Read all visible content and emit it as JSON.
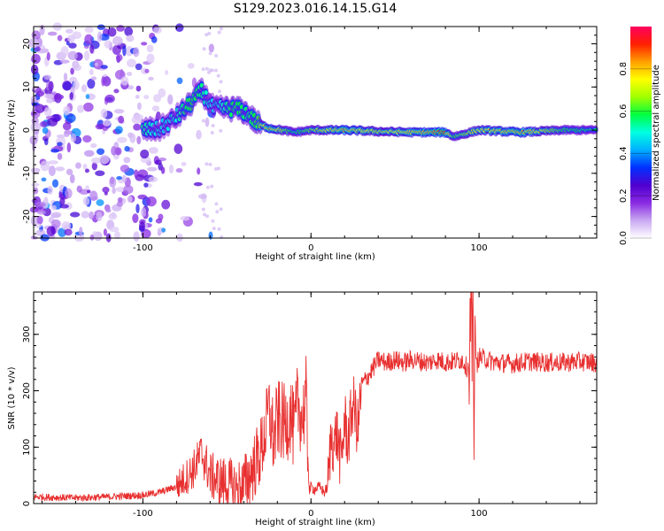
{
  "title": "S129.2023.016.14.15.G14",
  "chart_data": [
    {
      "type": "heatmap",
      "xlabel": "Height of straight line (km)",
      "ylabel": "Frequency (Hz)",
      "xlim": [
        -165,
        170
      ],
      "ylim": [
        -25,
        24
      ],
      "x_ticks": [
        -100,
        0,
        100
      ],
      "y_ticks": [
        -20,
        -10,
        0,
        10,
        20
      ],
      "grid": false,
      "colorbar": {
        "label": "Normalized spectral amplitude",
        "range": [
          0,
          1
        ],
        "ticks": [
          "0.0",
          "0.2",
          "0.4",
          "0.6",
          "0.8"
        ],
        "colormap": [
          "#ffffff",
          "#c9a8f2",
          "#8a2be2",
          "#5000d0",
          "#0030ff",
          "#00b0ff",
          "#00ffe0",
          "#00ff40",
          "#a0ff00",
          "#ffff00",
          "#ffa000",
          "#ff2000",
          "#ff0060"
        ]
      },
      "ridge": [
        {
          "x": -100,
          "y": 0.0,
          "amp": 0.55
        },
        {
          "x": -90,
          "y": 0.2,
          "amp": 0.45
        },
        {
          "x": -80,
          "y": 3.0,
          "amp": 0.5
        },
        {
          "x": -72,
          "y": 6.0,
          "amp": 0.6
        },
        {
          "x": -65,
          "y": 9.0,
          "amp": 0.55
        },
        {
          "x": -58,
          "y": 5.0,
          "amp": 0.45
        },
        {
          "x": -45,
          "y": 5.0,
          "amp": 0.6
        },
        {
          "x": -38,
          "y": 4.0,
          "amp": 0.55
        },
        {
          "x": -32,
          "y": 1.5,
          "amp": 0.6
        },
        {
          "x": -25,
          "y": 0.5,
          "amp": 0.85
        },
        {
          "x": -10,
          "y": -0.5,
          "amp": 0.55
        },
        {
          "x": 0,
          "y": 0.0,
          "amp": 0.65
        },
        {
          "x": 20,
          "y": 0.0,
          "amp": 0.85
        },
        {
          "x": 40,
          "y": -0.3,
          "amp": 0.7
        },
        {
          "x": 60,
          "y": -0.5,
          "amp": 0.8
        },
        {
          "x": 80,
          "y": -0.5,
          "amp": 0.9
        },
        {
          "x": 85,
          "y": -1.5,
          "amp": 0.6
        },
        {
          "x": 100,
          "y": 0.0,
          "amp": 0.75
        },
        {
          "x": 125,
          "y": -0.5,
          "amp": 0.85
        },
        {
          "x": 150,
          "y": 0.0,
          "amp": 0.6
        },
        {
          "x": 170,
          "y": 0.0,
          "amp": 0.55
        }
      ]
    },
    {
      "type": "line",
      "xlabel": "Height of straight line (km)",
      "ylabel": "SNR (10 * v/v)",
      "xlim": [
        -165,
        170
      ],
      "ylim": [
        0,
        375
      ],
      "x_ticks": [
        -100,
        0,
        100
      ],
      "y_ticks": [
        0,
        100,
        200,
        300
      ],
      "grid": false,
      "line_color": "#e83030",
      "series": [
        {
          "x": [
            -165,
            -140,
            -120,
            -100,
            -90,
            -80,
            -75,
            -70,
            -65,
            -60,
            -55,
            -50,
            -45,
            -40,
            -35,
            -30,
            -27,
            -25,
            -22,
            -20,
            -15,
            -12,
            -10,
            -8,
            -5,
            -3,
            -2,
            -1,
            0,
            2,
            5,
            8,
            10,
            12,
            14,
            15,
            18,
            20,
            22,
            25,
            28,
            30,
            35,
            40,
            45,
            50,
            55,
            60,
            65,
            70,
            75,
            80,
            85,
            90,
            93,
            95,
            96,
            97,
            98,
            100,
            105,
            110,
            120,
            130,
            140,
            150,
            160,
            170
          ],
          "y": [
            12,
            10,
            12,
            15,
            20,
            30,
            45,
            60,
            90,
            50,
            40,
            35,
            25,
            30,
            60,
            90,
            130,
            165,
            110,
            150,
            140,
            160,
            120,
            180,
            150,
            190,
            100,
            20,
            30,
            25,
            30,
            20,
            30,
            120,
            100,
            130,
            70,
            150,
            110,
            180,
            130,
            210,
            230,
            255,
            250,
            255,
            250,
            255,
            252,
            250,
            255,
            250,
            252,
            255,
            240,
            260,
            320,
            200,
            240,
            260,
            255,
            250,
            248,
            252,
            250,
            250,
            252,
            250
          ]
        }
      ]
    }
  ]
}
